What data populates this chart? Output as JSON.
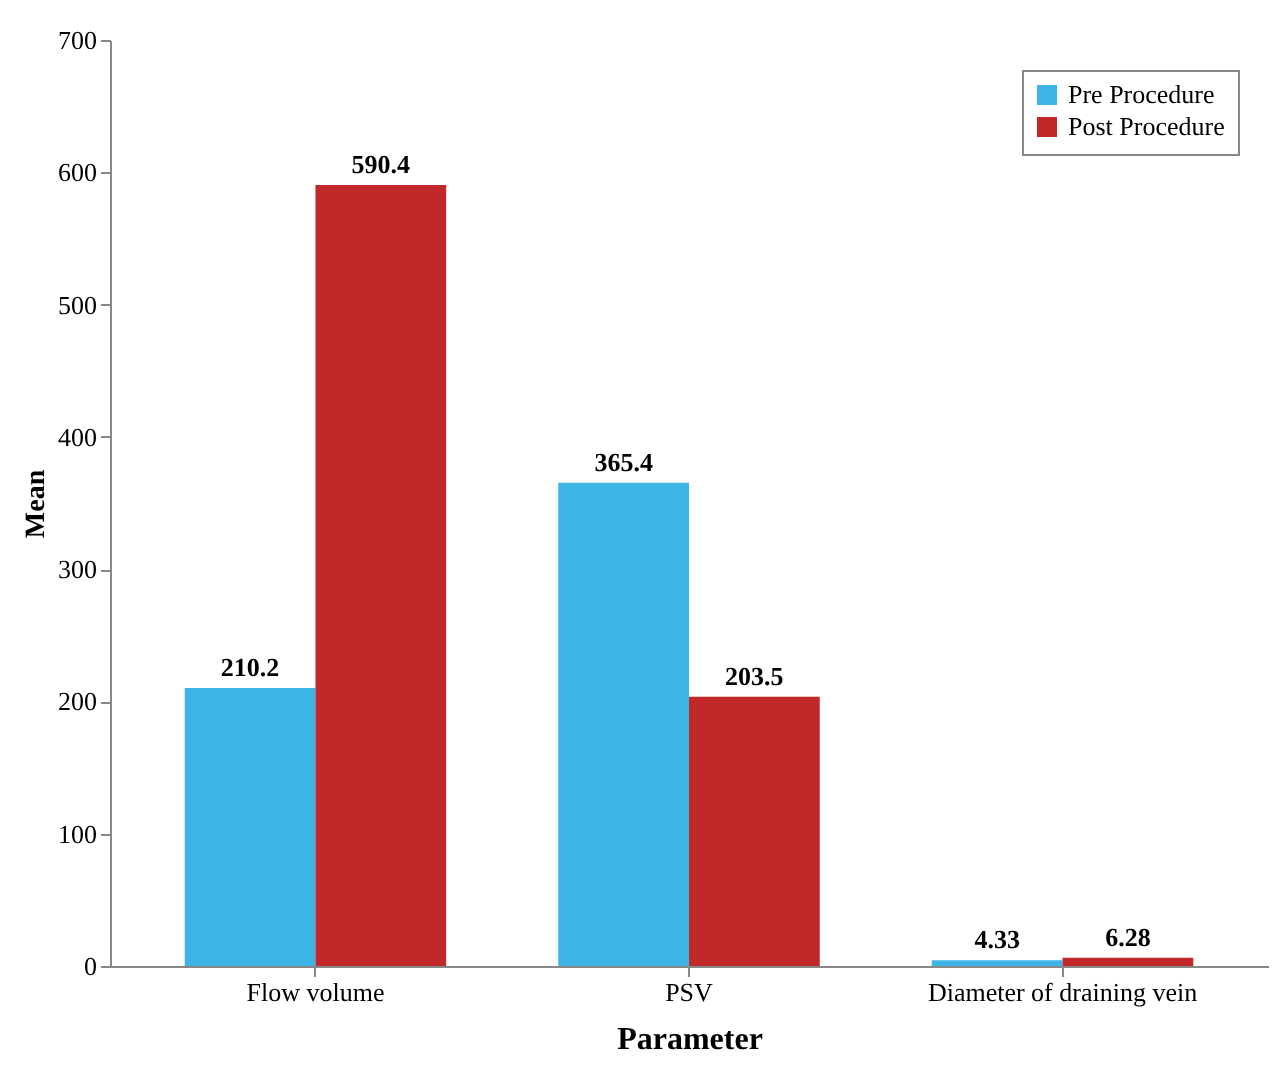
{
  "chart_data": {
    "type": "bar",
    "xlabel": "Parameter",
    "ylabel": "Mean",
    "categories": [
      "Flow volume",
      "PSV",
      "Diameter of draining vein"
    ],
    "series": [
      {
        "name": "Pre Procedure",
        "color": "#3cb4e5",
        "values": [
          210.2,
          365.4,
          4.33
        ]
      },
      {
        "name": "Post Procedure",
        "color": "#c0282a",
        "values": [
          590.4,
          203.5,
          6.28
        ]
      }
    ],
    "ylim": [
      0,
      700
    ],
    "yticks": [
      0,
      100,
      200,
      300,
      400,
      500,
      600,
      700
    ],
    "grid": false,
    "legend": "top right",
    "data_labels": true
  }
}
